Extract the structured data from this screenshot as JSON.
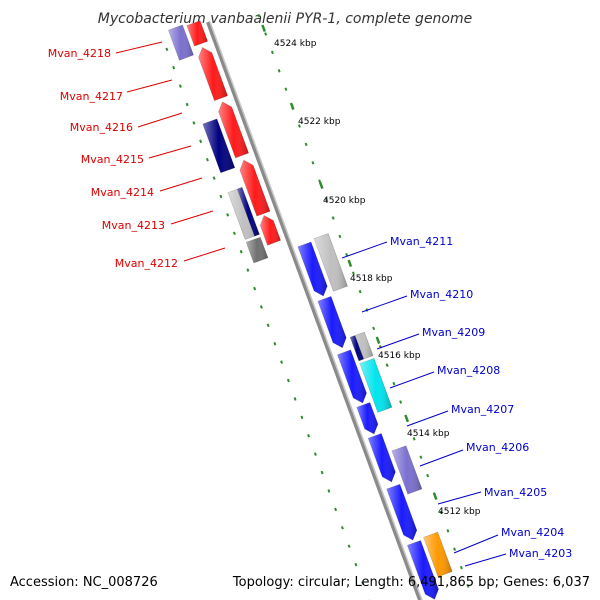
{
  "title": "Mycobacterium vanbaalenii PYR-1, complete genome",
  "footer": {
    "accession": "Accession: NC_008726",
    "summary": "Topology: circular; Length: 6,491,865 bp; Genes: 6,037"
  },
  "colors": {
    "backbone": "#999999",
    "tick": "#2e8b2e",
    "reverse_label": "#dd0000",
    "forward_label": "#0000cc",
    "red_cds": "#ff1a1a",
    "blue_cds": "#1a1aff",
    "navy": "#000080",
    "lavender": "#7b70d0",
    "gray": "#c0c0c0",
    "dark_gray": "#707070",
    "cyan": "#00e5ee",
    "orange": "#ff9900"
  },
  "axis": {
    "ticks": [
      {
        "label": "4524 kbp"
      },
      {
        "label": "4522 kbp"
      },
      {
        "label": "4520 kbp"
      },
      {
        "label": "4518 kbp"
      },
      {
        "label": "4516 kbp"
      },
      {
        "label": "4514 kbp"
      },
      {
        "label": "4512 kbp"
      }
    ]
  },
  "genes_reverse": [
    {
      "label": "Mvan_4218"
    },
    {
      "label": "Mvan_4217"
    },
    {
      "label": "Mvan_4216"
    },
    {
      "label": "Mvan_4215"
    },
    {
      "label": "Mvan_4214"
    },
    {
      "label": "Mvan_4213"
    },
    {
      "label": "Mvan_4212"
    }
  ],
  "genes_forward": [
    {
      "label": "Mvan_4211"
    },
    {
      "label": "Mvan_4210"
    },
    {
      "label": "Mvan_4209"
    },
    {
      "label": "Mvan_4208"
    },
    {
      "label": "Mvan_4207"
    },
    {
      "label": "Mvan_4206"
    },
    {
      "label": "Mvan_4205"
    },
    {
      "label": "Mvan_4204"
    },
    {
      "label": "Mvan_4203"
    }
  ]
}
